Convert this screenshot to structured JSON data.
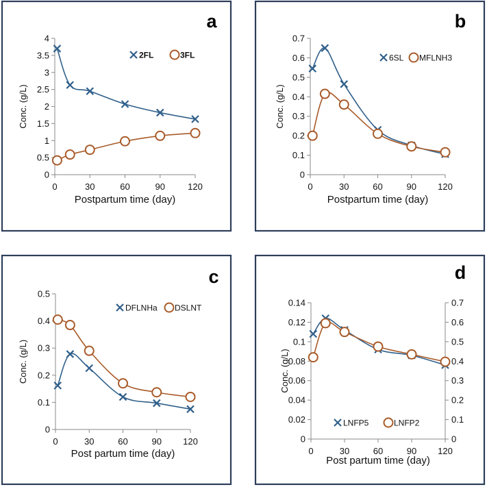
{
  "colors": {
    "series1": "#2f5f8a",
    "series2": "#a85a28",
    "frame": "#2c3e5a",
    "axis": "#888888"
  },
  "chart_data": [
    {
      "panel": "a",
      "type": "line",
      "xlabel": "Postpartum time (day)",
      "ylabel": "Conc. (g/L)",
      "xlim": [
        0,
        120
      ],
      "xticks": [
        0,
        30,
        60,
        90,
        120
      ],
      "ylim": [
        0,
        4
      ],
      "yticks": [
        0,
        0.5,
        1,
        1.5,
        2,
        2.5,
        3,
        3.5,
        4
      ],
      "x": [
        2,
        13,
        30,
        60,
        90,
        120
      ],
      "legend_bold": true,
      "legend_placement": "top-right",
      "series": [
        {
          "name": "2FL",
          "marker": "x",
          "axis": "left",
          "values": [
            3.7,
            2.63,
            2.45,
            2.07,
            1.82,
            1.63
          ]
        },
        {
          "name": "3FL",
          "marker": "o",
          "axis": "left",
          "values": [
            0.42,
            0.59,
            0.73,
            0.98,
            1.14,
            1.22
          ]
        }
      ]
    },
    {
      "panel": "b",
      "type": "line",
      "xlabel": "Postpartum time (day)",
      "ylabel": "Conc. (g/L)",
      "xlim": [
        0,
        120
      ],
      "xticks": [
        0,
        30,
        60,
        90,
        120
      ],
      "ylim": [
        0,
        0.7
      ],
      "yticks": [
        0,
        0.1,
        0.2,
        0.3,
        0.4,
        0.5,
        0.6,
        0.7
      ],
      "x": [
        2,
        13,
        30,
        60,
        90,
        120
      ],
      "legend_bold": false,
      "legend_placement": "top-right",
      "series": [
        {
          "name": "6SL",
          "marker": "x",
          "axis": "left",
          "values": [
            0.545,
            0.65,
            0.465,
            0.23,
            0.15,
            0.105
          ]
        },
        {
          "name": "MFLNH3",
          "marker": "o",
          "axis": "left",
          "values": [
            0.2,
            0.415,
            0.36,
            0.21,
            0.145,
            0.115
          ]
        }
      ]
    },
    {
      "panel": "c",
      "type": "line",
      "xlabel": "Post partum time (day)",
      "ylabel": "Conc. (g/L)",
      "xlim": [
        0,
        120
      ],
      "xticks": [
        0,
        30,
        60,
        90,
        120
      ],
      "ylim": [
        0,
        0.5
      ],
      "yticks": [
        0,
        0.1,
        0.2,
        0.3,
        0.4,
        0.5
      ],
      "x": [
        2,
        13,
        30,
        60,
        90,
        120
      ],
      "legend_bold": false,
      "legend_placement": "top-right",
      "series": [
        {
          "name": "DFLNHa",
          "marker": "x",
          "axis": "left",
          "values": [
            0.162,
            0.278,
            0.226,
            0.12,
            0.097,
            0.075
          ]
        },
        {
          "name": "DSLNT",
          "marker": "o",
          "axis": "left",
          "values": [
            0.405,
            0.385,
            0.29,
            0.17,
            0.137,
            0.12
          ]
        }
      ]
    },
    {
      "panel": "d",
      "type": "line",
      "xlabel": "Post partum time (day)",
      "ylabel": "Conc. (g/L)",
      "xlim": [
        0,
        120
      ],
      "xticks": [
        0,
        30,
        60,
        90,
        120
      ],
      "ylim": [
        0,
        0.14
      ],
      "yticks": [
        0,
        0.02,
        0.04,
        0.06,
        0.08,
        0.1,
        0.12,
        0.14
      ],
      "y2lim": [
        0,
        0.7
      ],
      "y2ticks": [
        0,
        0.1,
        0.2,
        0.3,
        0.4,
        0.5,
        0.6,
        0.7
      ],
      "x": [
        2,
        13,
        30,
        60,
        90,
        120
      ],
      "legend_bold": false,
      "legend_placement": "bottom-center",
      "series": [
        {
          "name": "LNFP5",
          "marker": "x",
          "axis": "left",
          "values": [
            0.108,
            0.124,
            0.112,
            0.092,
            0.086,
            0.076
          ]
        },
        {
          "name": "LNFP2",
          "marker": "o",
          "axis": "right",
          "values": [
            0.42,
            0.595,
            0.55,
            0.475,
            0.435,
            0.397
          ]
        }
      ]
    }
  ]
}
